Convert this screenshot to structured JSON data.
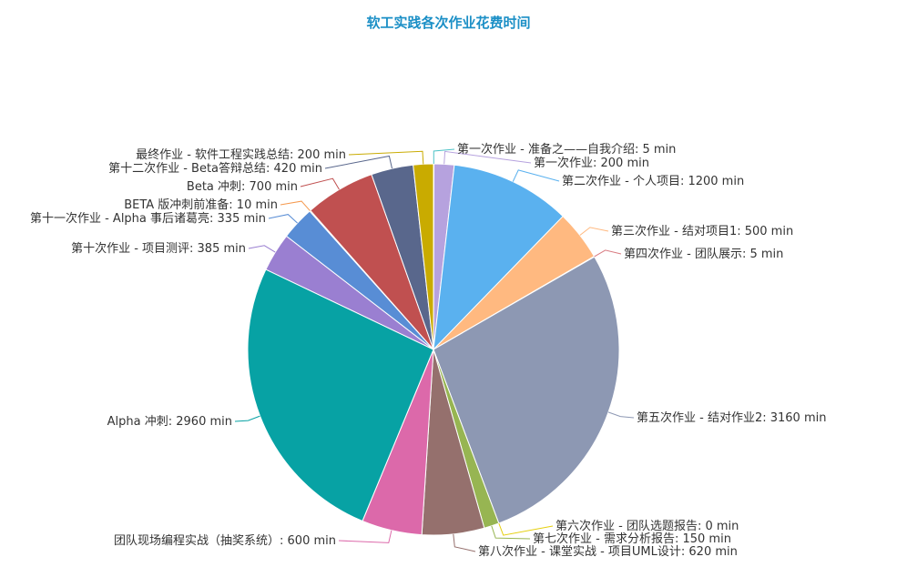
{
  "chart_data": {
    "type": "pie",
    "title": "软工实践各次作业花费时间",
    "unit": "min",
    "slices": [
      {
        "label": "第一次作业 - 准备之——自我介绍",
        "value": 5,
        "color": "#4ec3c7"
      },
      {
        "label": "第一次作业",
        "value": 200,
        "color": "#b6a2de"
      },
      {
        "label": "第二次作业 - 个人项目",
        "value": 1200,
        "color": "#5ab1ef"
      },
      {
        "label": "第三次作业 - 结对项目1",
        "value": 500,
        "color": "#ffb980"
      },
      {
        "label": "第四次作业 - 团队展示",
        "value": 5,
        "color": "#d87a80"
      },
      {
        "label": "第五次作业 - 结对作业2",
        "value": 3160,
        "color": "#8d98b3"
      },
      {
        "label": "第六次作业 - 团队选题报告",
        "value": 0,
        "color": "#e5cf0d"
      },
      {
        "label": "第七次作业 - 需求分析报告",
        "value": 150,
        "color": "#97b552"
      },
      {
        "label": "第八次作业 - 课堂实战 - 项目UML设计",
        "value": 620,
        "color": "#95706d"
      },
      {
        "label": "团队现场编程实战（抽奖系统）",
        "value": 600,
        "color": "#dc69aa"
      },
      {
        "label": "Alpha 冲刺",
        "value": 2960,
        "color": "#07a2a4"
      },
      {
        "label": "第十次作业 - 项目测评",
        "value": 385,
        "color": "#9a7fd1"
      },
      {
        "label": "第十一次作业 - Alpha 事后诸葛亮",
        "value": 335,
        "color": "#588dd5"
      },
      {
        "label": "BETA 版冲刺前准备",
        "value": 10,
        "color": "#f5994e"
      },
      {
        "label": "Beta 冲刺",
        "value": 700,
        "color": "#c05050"
      },
      {
        "label": "第十二次作业 - Beta答辩总结",
        "value": 420,
        "color": "#59678c"
      },
      {
        "label": "最终作业 - 软件工程实践总结",
        "value": 200,
        "color": "#c9ab00"
      }
    ]
  }
}
